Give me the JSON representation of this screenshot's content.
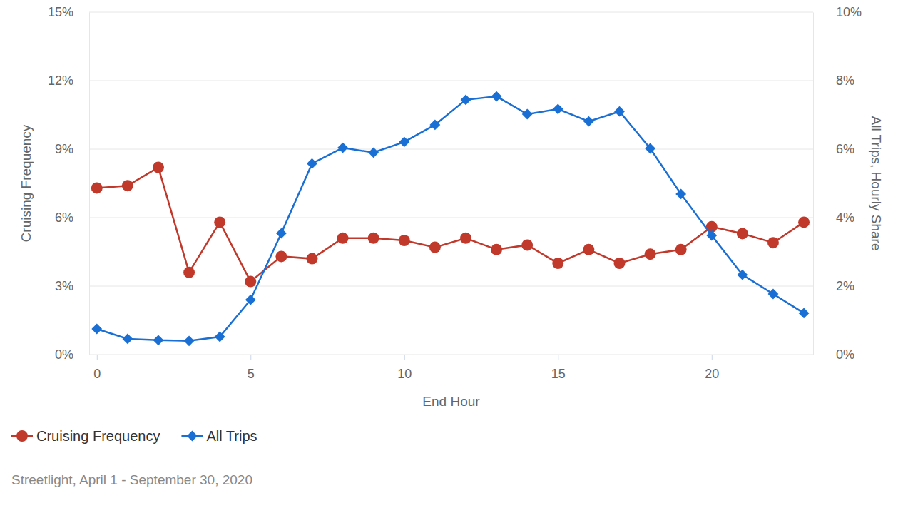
{
  "chart_data": {
    "type": "line",
    "x": [
      0,
      1,
      2,
      3,
      4,
      5,
      6,
      7,
      8,
      9,
      10,
      11,
      12,
      13,
      14,
      15,
      16,
      17,
      18,
      19,
      20,
      21,
      22,
      23
    ],
    "xlim": [
      -0.25,
      23.3
    ],
    "xticks": [
      0,
      5,
      10,
      15,
      20
    ],
    "x_label": "End Hour",
    "y_label": "Cruising Frequency",
    "y2_label": "All Trips, Hourly Share",
    "ylim": [
      0,
      15
    ],
    "yticks": [
      {
        "value": 0,
        "label": "0%"
      },
      {
        "value": 3,
        "label": "3%"
      },
      {
        "value": 6,
        "label": "6%"
      },
      {
        "value": 9,
        "label": "9%"
      },
      {
        "value": 12,
        "label": "12%"
      },
      {
        "value": 15,
        "label": "15%"
      }
    ],
    "y2lim": [
      0,
      10
    ],
    "y2ticks": [
      {
        "value": 0,
        "label": "0%"
      },
      {
        "value": 2,
        "label": "2%"
      },
      {
        "value": 4,
        "label": "4%"
      },
      {
        "value": 6,
        "label": "6%"
      },
      {
        "value": 8,
        "label": "8%"
      },
      {
        "value": 10,
        "label": "10%"
      }
    ],
    "grid": true,
    "legend": "bottom-left",
    "caption": "Streetlight, April 1 - September 30, 2020",
    "series": [
      {
        "name": "Cruising Frequency",
        "color": "#c0392b",
        "marker": "circle",
        "line_style": "solid",
        "values": [
          7.3,
          7.4,
          8.2,
          3.6,
          5.8,
          3.2,
          4.3,
          4.2,
          5.1,
          5.1,
          5.0,
          4.7,
          5.1,
          4.6,
          4.8,
          4.0,
          4.6,
          4.0,
          4.4,
          4.6,
          5.6,
          5.3,
          4.9,
          5.8
        ]
      },
      {
        "name": "All Trips",
        "color": "#1a6fd4",
        "marker": "diamond",
        "line_style": "solid",
        "axis": "y2",
        "values": [
          0.75,
          0.46,
          0.42,
          0.4,
          0.52,
          1.6,
          3.54,
          5.58,
          6.04,
          5.9,
          6.21,
          6.71,
          7.44,
          7.54,
          7.02,
          7.17,
          6.81,
          7.1,
          6.02,
          4.69,
          3.48,
          2.33,
          1.77,
          1.21
        ]
      }
    ]
  }
}
